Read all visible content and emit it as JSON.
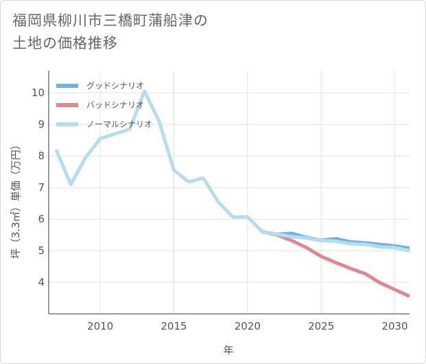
{
  "title": {
    "line1": "福岡県柳川市三橋町蒲船津の",
    "line2": "土地の価格推移"
  },
  "chart_data": {
    "type": "line",
    "title": "福岡県柳川市三橋町蒲船津の土地の価格推移",
    "xlabel": "年",
    "ylabel": "坪（3.3㎡）単価（万円）",
    "xlim": [
      2006.5,
      2031
    ],
    "ylim": [
      3,
      10.7
    ],
    "xticks": [
      2010,
      2015,
      2020,
      2025,
      2030
    ],
    "yticks": [
      4,
      5,
      6,
      7,
      8,
      9,
      10
    ],
    "grid": true,
    "legend_position": "top-left",
    "series": [
      {
        "name": "グッドシナリオ",
        "color": "#6cb4e4",
        "x": [
          2021,
          2022,
          2023,
          2024,
          2025,
          2026,
          2027,
          2028,
          2029,
          2030,
          2031
        ],
        "y": [
          5.6,
          5.52,
          5.55,
          5.42,
          5.33,
          5.38,
          5.28,
          5.25,
          5.2,
          5.15,
          5.08
        ]
      },
      {
        "name": "バッドシナリオ",
        "color": "#e0888e",
        "x": [
          2021,
          2022,
          2023,
          2024,
          2025,
          2026,
          2027,
          2028,
          2029,
          2030,
          2031
        ],
        "y": [
          5.6,
          5.5,
          5.32,
          5.1,
          4.82,
          4.62,
          4.44,
          4.27,
          3.98,
          3.77,
          3.56
        ]
      },
      {
        "name": "ノーマルシナリオ",
        "color": "#b7dcee",
        "x": [
          2007,
          2008,
          2009,
          2010,
          2011,
          2012,
          2013,
          2014,
          2015,
          2016,
          2017,
          2018,
          2019,
          2020,
          2021,
          2022,
          2023,
          2024,
          2025,
          2026,
          2027,
          2028,
          2029,
          2030,
          2031
        ],
        "y": [
          8.2,
          7.1,
          7.95,
          8.55,
          8.7,
          8.85,
          10.05,
          9.1,
          7.55,
          7.18,
          7.3,
          6.55,
          6.07,
          6.07,
          5.6,
          5.52,
          5.45,
          5.4,
          5.32,
          5.3,
          5.22,
          5.2,
          5.12,
          5.1,
          5.0
        ]
      }
    ]
  }
}
